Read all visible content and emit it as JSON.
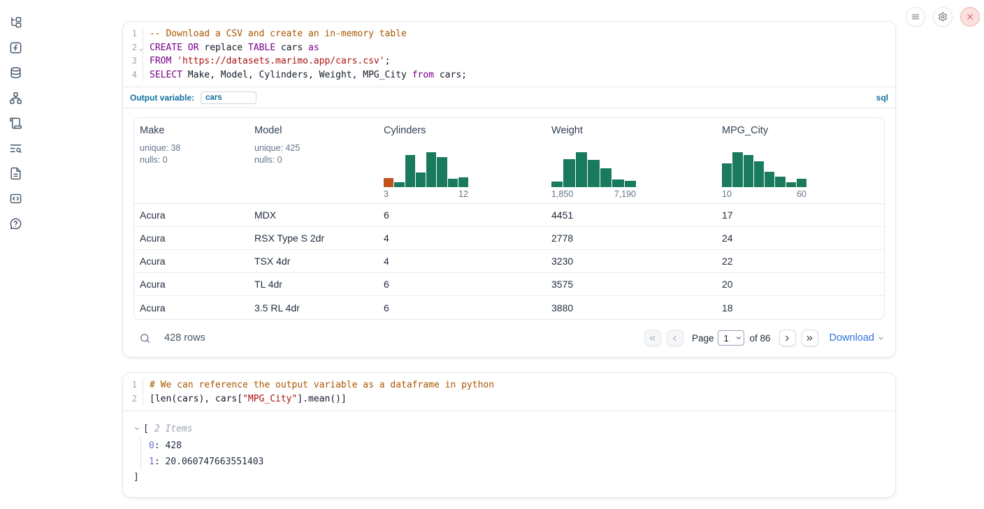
{
  "colors": {
    "hist_green": "#1a7a5e",
    "hist_orange": "#c0531d",
    "accent_blue": "#0e6f9e",
    "link_blue": "#2d72d9",
    "keyword_purple": "#770088",
    "string_red": "#aa1111",
    "comment_brown": "#aa5500",
    "close_red": "#d95757"
  },
  "sidebar": {
    "icons": [
      "file-tree-icon",
      "function-icon",
      "database-icon",
      "dependency-graph-icon",
      "scroll-icon",
      "logs-search-icon",
      "documentation-icon",
      "snippets-icon",
      "help-icon"
    ]
  },
  "window_controls": {
    "icons": [
      "hamburger-menu-icon",
      "gear-icon",
      "close-x-icon"
    ]
  },
  "sql_cell": {
    "line_numbers": [
      "1",
      "2",
      "3",
      "4"
    ],
    "lines": [
      [
        {
          "t": "com",
          "x": "-- Download a CSV and create an in-memory table"
        }
      ],
      [
        {
          "t": "kw",
          "x": "CREATE"
        },
        {
          "t": "txt",
          "x": " "
        },
        {
          "t": "kw",
          "x": "OR"
        },
        {
          "t": "txt",
          "x": " replace "
        },
        {
          "t": "kw",
          "x": "TABLE"
        },
        {
          "t": "txt",
          "x": " cars "
        },
        {
          "t": "kw",
          "x": "as"
        }
      ],
      [
        {
          "t": "kw",
          "x": "FROM"
        },
        {
          "t": "txt",
          "x": " "
        },
        {
          "t": "str",
          "x": "'https://datasets.marimo.app/cars.csv'"
        },
        {
          "t": "txt",
          "x": ";"
        }
      ],
      [
        {
          "t": "kw",
          "x": "SELECT"
        },
        {
          "t": "txt",
          "x": " Make, Model, Cylinders, Weight, MPG_City "
        },
        {
          "t": "kw",
          "x": "from"
        },
        {
          "t": "txt",
          "x": " cars;"
        }
      ]
    ],
    "output_variable_label": "Output variable:",
    "output_variable_value": "cars",
    "language_badge": "sql"
  },
  "table": {
    "columns": [
      {
        "label": "Make",
        "stats": [
          "unique: 38",
          "nulls: 0"
        ]
      },
      {
        "label": "Model",
        "stats": [
          "unique: 425",
          "nulls: 0"
        ]
      },
      {
        "label": "Cylinders",
        "histogram": {
          "bars": [
            13,
            7,
            46,
            21,
            50,
            43,
            12,
            14
          ],
          "colors": [
            "#c0531d"
          ],
          "min": "3",
          "max": "12"
        }
      },
      {
        "label": "Weight",
        "histogram": {
          "bars": [
            8,
            40,
            50,
            39,
            27,
            11,
            9
          ],
          "min": "1,850",
          "max": "7,190"
        }
      },
      {
        "label": "MPG_City",
        "histogram": {
          "bars": [
            34,
            50,
            46,
            37,
            22,
            15,
            7,
            12
          ],
          "min": "10",
          "max": "60"
        }
      }
    ],
    "rows": [
      [
        "Acura",
        "MDX",
        "6",
        "4451",
        "17"
      ],
      [
        "Acura",
        "RSX Type S 2dr",
        "4",
        "2778",
        "24"
      ],
      [
        "Acura",
        "TSX 4dr",
        "4",
        "3230",
        "22"
      ],
      [
        "Acura",
        "TL 4dr",
        "6",
        "3575",
        "20"
      ],
      [
        "Acura",
        "3.5 RL 4dr",
        "6",
        "3880",
        "18"
      ]
    ]
  },
  "table_footer": {
    "row_count": "428 rows",
    "page_label": "Page",
    "page_value": "1",
    "of_label": "of 86",
    "download_label": "Download",
    "pager_icons": [
      "chevrons-left-icon",
      "chevron-left-icon",
      "chevron-right-icon",
      "chevrons-right-icon"
    ]
  },
  "python_cell": {
    "line_numbers": [
      "1",
      "2"
    ],
    "lines": [
      [
        {
          "t": "com",
          "x": "# We can reference the output variable as a dataframe in python"
        }
      ],
      [
        {
          "t": "txt",
          "x": "[len(cars), cars["
        },
        {
          "t": "str",
          "x": "\"MPG_City\""
        },
        {
          "t": "txt",
          "x": "].mean()]"
        }
      ]
    ]
  },
  "output_tree": {
    "open_bracket": "[",
    "items_label": "2 Items",
    "entries": [
      {
        "key": "0",
        "value": "428"
      },
      {
        "key": "1",
        "value": "20.060747663551403"
      }
    ],
    "close_bracket": "]"
  }
}
